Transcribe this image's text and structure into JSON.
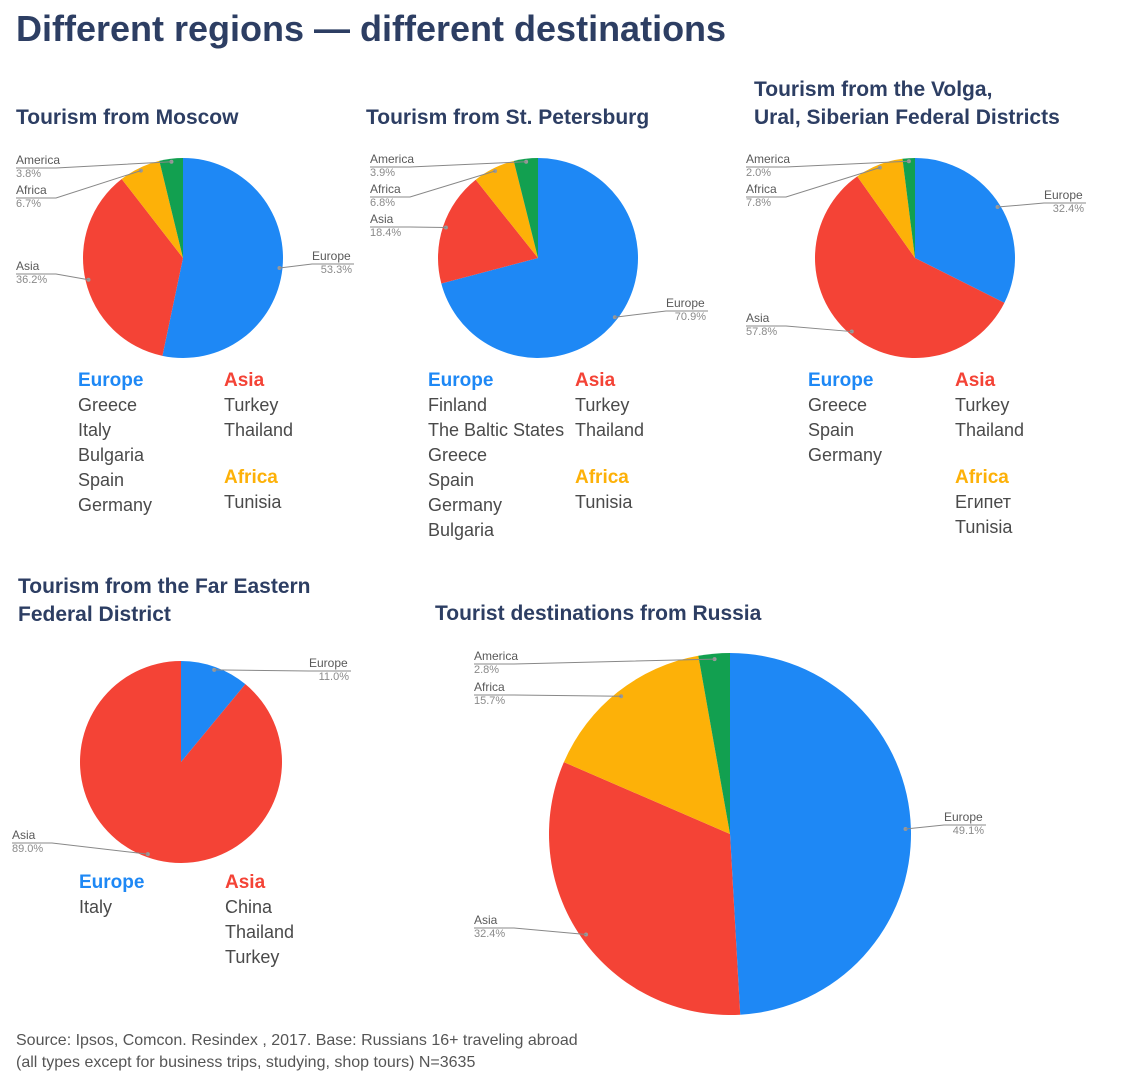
{
  "title": "Different regions — different destinations",
  "colors": {
    "Europe": "#1e88f5",
    "Asia": "#f44336",
    "Africa": "#fdb108",
    "America": "#12a050",
    "title": "#2d3e63"
  },
  "source": [
    "Source: Ipsos, Comcon. Resindex , 2017. Base: Russians 16+ traveling abroad",
    "(all types except for business trips, studying, shop tours) N=3635"
  ],
  "panels": [
    {
      "title_lines": [
        "Tourism from Moscow"
      ],
      "destinations": {
        "europe": {
          "label": "Europe",
          "items": [
            "Greece",
            "Italy",
            "Bulgaria",
            "Spain",
            "Germany"
          ]
        },
        "asia": {
          "label": "Asia",
          "items": [
            "Turkey",
            "Thailand"
          ]
        },
        "africa": {
          "label": "Africa",
          "items": [
            "Tunisia"
          ]
        }
      }
    },
    {
      "title_lines": [
        "Tourism from St. Petersburg"
      ],
      "destinations": {
        "europe": {
          "label": "Europe",
          "items": [
            "Finland",
            "The Baltic States",
            "Greece",
            "Spain",
            "Germany",
            "Bulgaria"
          ]
        },
        "asia": {
          "label": "Asia",
          "items": [
            "Turkey",
            "Thailand"
          ]
        },
        "africa": {
          "label": "Africa",
          "items": [
            "Tunisia"
          ]
        }
      }
    },
    {
      "title_lines": [
        "Tourism from the Volga,",
        "Ural, Siberian Federal Districts"
      ],
      "destinations": {
        "europe": {
          "label": "Europe",
          "items": [
            "Greece",
            "Spain",
            "Germany"
          ]
        },
        "asia": {
          "label": "Asia",
          "items": [
            "Turkey",
            "Thailand"
          ]
        },
        "africa": {
          "label": "Africa",
          "items": [
            "Египет",
            "Tunisia"
          ]
        }
      }
    },
    {
      "title_lines": [
        "Tourism from the Far Eastern",
        "Federal District"
      ],
      "destinations": {
        "europe": {
          "label": "Europe",
          "items": [
            "Italy"
          ]
        },
        "asia": {
          "label": "Asia",
          "items": [
            "China",
            "Thailand",
            "Turkey"
          ]
        }
      }
    },
    {
      "title_lines": [
        "Tourist destinations from Russia"
      ]
    }
  ],
  "chart_data": [
    {
      "type": "pie",
      "title": "Tourism from Moscow",
      "categories": [
        "Europe",
        "Asia",
        "Africa",
        "America"
      ],
      "values": [
        53.3,
        36.2,
        6.7,
        3.8
      ],
      "value_labels": [
        "53.3%",
        "36.2%",
        "6.7%",
        "3.8%"
      ]
    },
    {
      "type": "pie",
      "title": "Tourism from St. Petersburg",
      "categories": [
        "Europe",
        "Asia",
        "Africa",
        "America"
      ],
      "values": [
        70.9,
        18.4,
        6.8,
        3.9
      ],
      "value_labels": [
        "70.9%",
        "18.4%",
        "6.8%",
        "3.9%"
      ]
    },
    {
      "type": "pie",
      "title": "Tourism from the Volga, Ural, Siberian Federal Districts",
      "categories": [
        "Europe",
        "Asia",
        "Africa",
        "America"
      ],
      "values": [
        32.4,
        57.8,
        7.8,
        2.0
      ],
      "value_labels": [
        "32.4%",
        "57.8%",
        "7.8%",
        "2.0%"
      ]
    },
    {
      "type": "pie",
      "title": "Tourism from the Far Eastern Federal District",
      "categories": [
        "Europe",
        "Asia"
      ],
      "values": [
        11.0,
        89.0
      ],
      "value_labels": [
        "11.0%",
        "89.0%"
      ]
    },
    {
      "type": "pie",
      "title": "Tourist destinations from Russia",
      "categories": [
        "Europe",
        "Asia",
        "Africa",
        "America"
      ],
      "values": [
        49.1,
        32.4,
        15.7,
        2.8
      ],
      "value_labels": [
        "49.1%",
        "32.4%",
        "15.7%",
        "2.8%"
      ]
    }
  ]
}
